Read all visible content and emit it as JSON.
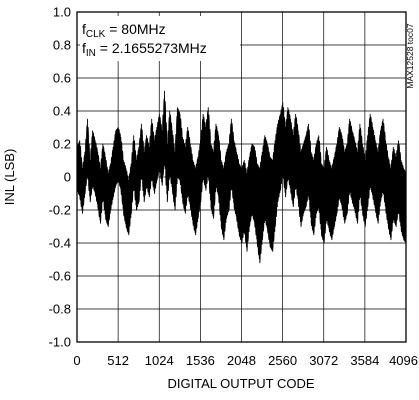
{
  "chart_data": {
    "type": "line",
    "xlabel": "DIGITAL OUTPUT CODE",
    "ylabel": "INL (LSB)",
    "xlim": [
      0,
      4096
    ],
    "ylim": [
      -1.0,
      1.0
    ],
    "x_ticks": [
      0,
      512,
      1024,
      1536,
      2048,
      2560,
      3072,
      3584,
      4096
    ],
    "y_ticks": [
      1.0,
      0.8,
      0.6,
      0.4,
      0.2,
      0,
      -0.2,
      -0.4,
      -0.6,
      -0.8,
      -1.0
    ],
    "x_tick_labels": [
      "0",
      "512",
      "1024",
      "1536",
      "2048",
      "2560",
      "3072",
      "3584",
      "4096"
    ],
    "y_tick_labels": [
      "1.0",
      "0.8",
      "0.6",
      "0.4",
      "0.2",
      "0",
      "-0.2",
      "-0.4",
      "-0.6",
      "-0.8",
      "-1.0"
    ],
    "grid": true,
    "annotations": {
      "fclk_main": "f",
      "fclk_sub": "CLK",
      "fclk_value": " = 80MHz",
      "fin_main": "f",
      "fin_sub": "IN",
      "fin_value": " = 2.1655273MHz"
    },
    "side_id": "MAX12528 toc07",
    "series": [
      {
        "color": "#000000",
        "x": [
          0,
          32,
          64,
          96,
          128,
          160,
          192,
          224,
          256,
          288,
          320,
          352,
          384,
          416,
          448,
          480,
          512,
          544,
          576,
          608,
          640,
          672,
          704,
          736,
          768,
          800,
          832,
          864,
          896,
          928,
          960,
          992,
          1024,
          1056,
          1088,
          1120,
          1152,
          1184,
          1216,
          1248,
          1280,
          1312,
          1344,
          1376,
          1408,
          1440,
          1472,
          1504,
          1536,
          1568,
          1600,
          1632,
          1664,
          1696,
          1728,
          1760,
          1792,
          1824,
          1856,
          1888,
          1920,
          1952,
          1984,
          2016,
          2048,
          2080,
          2112,
          2144,
          2176,
          2208,
          2240,
          2272,
          2304,
          2336,
          2368,
          2400,
          2432,
          2464,
          2496,
          2528,
          2560,
          2592,
          2624,
          2656,
          2688,
          2720,
          2752,
          2784,
          2816,
          2848,
          2880,
          2912,
          2944,
          2976,
          3008,
          3040,
          3072,
          3104,
          3136,
          3168,
          3200,
          3232,
          3264,
          3296,
          3328,
          3360,
          3392,
          3424,
          3456,
          3488,
          3520,
          3552,
          3584,
          3616,
          3648,
          3680,
          3712,
          3744,
          3776,
          3808,
          3840,
          3872,
          3904,
          3936,
          3968,
          4000,
          4032,
          4064,
          4096
        ],
        "y_upper": [
          0.18,
          0.22,
          0.05,
          0.15,
          0.35,
          0.1,
          0.28,
          0.22,
          0.15,
          0.05,
          0.2,
          0.12,
          0.02,
          0.08,
          0.18,
          0.28,
          0.3,
          0.24,
          0.1,
          0.05,
          -0.02,
          0.08,
          0.25,
          0.1,
          0.18,
          0.32,
          0.15,
          0.25,
          0.18,
          0.35,
          0.22,
          0.3,
          0.38,
          0.28,
          0.52,
          0.2,
          0.4,
          0.28,
          0.15,
          0.42,
          0.38,
          0.24,
          0.18,
          0.3,
          0.2,
          0.1,
          0.05,
          0.12,
          0.22,
          0.38,
          0.3,
          0.42,
          0.2,
          0.15,
          0.32,
          0.25,
          0.1,
          0.05,
          0.15,
          0.2,
          0.35,
          0.22,
          0.15,
          0.08,
          0.05,
          0.1,
          0.02,
          0.12,
          0.2,
          0.18,
          0.08,
          0.05,
          0.15,
          0.25,
          0.2,
          0.12,
          0.1,
          0.22,
          0.32,
          0.38,
          0.45,
          0.3,
          0.42,
          0.35,
          0.25,
          0.38,
          0.28,
          0.15,
          0.2,
          0.25,
          0.32,
          0.15,
          0.1,
          0.2,
          0.25,
          0.08,
          0.05,
          0.18,
          0.1,
          0.05,
          0.12,
          0.2,
          0.3,
          0.25,
          0.15,
          0.2,
          0.35,
          0.28,
          0.22,
          0.15,
          0.32,
          0.2,
          0.1,
          0.25,
          0.38,
          0.3,
          0.22,
          0.15,
          0.28,
          0.35,
          0.22,
          0.12,
          0.05,
          0.18,
          0.12,
          0.22,
          0.1,
          0.05,
          0.02
        ],
        "y_lower": [
          -0.08,
          -0.12,
          -0.22,
          -0.1,
          0.02,
          -0.15,
          -0.05,
          -0.1,
          -0.18,
          -0.28,
          -0.12,
          -0.25,
          -0.3,
          -0.2,
          -0.12,
          -0.05,
          -0.02,
          -0.08,
          -0.22,
          -0.3,
          -0.35,
          -0.22,
          -0.05,
          -0.2,
          -0.15,
          0.02,
          -0.15,
          -0.05,
          -0.12,
          0.0,
          -0.1,
          -0.02,
          0.05,
          -0.05,
          0.1,
          -0.15,
          0.02,
          -0.08,
          -0.2,
          0.0,
          -0.02,
          -0.15,
          -0.22,
          -0.1,
          -0.18,
          -0.28,
          -0.35,
          -0.25,
          -0.15,
          0.0,
          -0.08,
          0.02,
          -0.18,
          -0.25,
          -0.05,
          -0.12,
          -0.3,
          -0.38,
          -0.25,
          -0.2,
          -0.05,
          -0.18,
          -0.25,
          -0.35,
          -0.4,
          -0.32,
          -0.45,
          -0.3,
          -0.22,
          -0.28,
          -0.4,
          -0.52,
          -0.38,
          -0.25,
          -0.32,
          -0.42,
          -0.45,
          -0.3,
          -0.15,
          -0.08,
          0.02,
          -0.12,
          0.0,
          -0.08,
          -0.18,
          -0.05,
          -0.15,
          -0.3,
          -0.22,
          -0.18,
          -0.1,
          -0.28,
          -0.35,
          -0.22,
          -0.18,
          -0.35,
          -0.4,
          -0.25,
          -0.32,
          -0.38,
          -0.3,
          -0.22,
          -0.12,
          -0.18,
          -0.28,
          -0.22,
          -0.08,
          -0.15,
          -0.2,
          -0.28,
          -0.1,
          -0.22,
          -0.3,
          -0.18,
          -0.05,
          -0.12,
          -0.2,
          -0.28,
          -0.15,
          -0.08,
          -0.2,
          -0.3,
          -0.38,
          -0.25,
          -0.3,
          -0.2,
          -0.32,
          -0.38,
          -0.4
        ]
      }
    ]
  }
}
